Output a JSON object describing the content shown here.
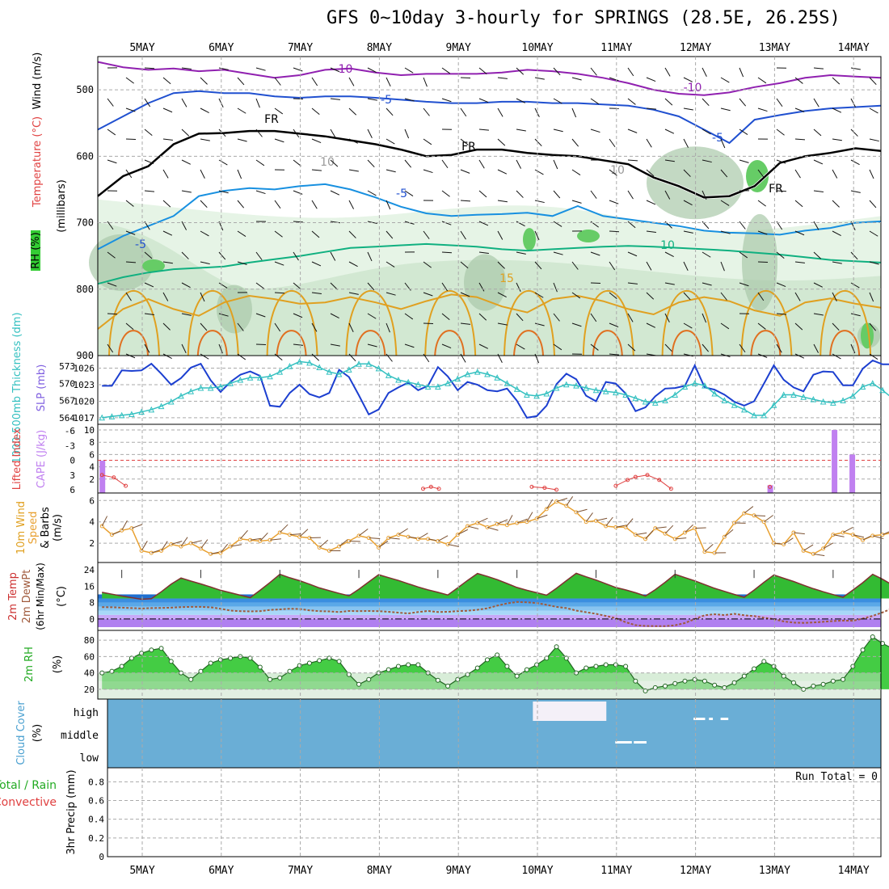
{
  "title": "GFS 0~10day 3-hourly for SPRINGS (28.5E, 26.25S)",
  "date_labels": [
    "5MAY",
    "6MAY",
    "7MAY",
    "8MAY",
    "9MAY",
    "10MAY",
    "11MAY",
    "12MAY",
    "13MAY",
    "14MAY"
  ],
  "colors": {
    "grid": "#aaaaaa",
    "slp": "#1c3fd0",
    "thick": "#33c0c0",
    "cape": "#c080f0",
    "li": "#e04040",
    "wind": "#e8a030",
    "rh": "#22cc22",
    "cloud": "#6aaed6"
  },
  "chart_data": [
    {
      "id": "upper_air",
      "type": "heatmap",
      "ylabel": "(millibars)",
      "side_labels": [
        "Wind (m/s)",
        "Temperature (°C)",
        "RH (%)"
      ],
      "yticks": [
        500,
        600,
        700,
        800,
        900
      ],
      "ylim": [
        900,
        450
      ],
      "contour_labels": [
        "-10",
        "-10",
        "-5",
        "-5",
        "-5",
        "FR",
        "FR",
        "FR",
        "-5",
        "10",
        "15",
        "10",
        "10"
      ],
      "temp_contours": [
        {
          "name": "-10",
          "color": "#9020b0",
          "pressure": [
            458,
            466,
            470,
            468,
            472,
            470,
            476,
            482,
            478,
            470,
            468,
            474,
            478,
            476,
            476,
            476,
            474,
            470,
            472,
            476,
            482,
            490,
            500,
            506,
            508,
            504,
            496,
            490,
            482,
            478,
            480,
            482
          ]
        },
        {
          "name": "-5",
          "color": "#2050d0",
          "pressure": [
            560,
            540,
            520,
            505,
            502,
            505,
            505,
            510,
            512,
            510,
            510,
            512,
            515,
            518,
            520,
            520,
            518,
            518,
            520,
            520,
            522,
            524,
            530,
            540,
            560,
            580,
            545,
            538,
            532,
            528,
            526,
            524
          ]
        },
        {
          "name": "FR",
          "color": "#000000",
          "pressure": [
            660,
            630,
            615,
            582,
            566,
            565,
            562,
            562,
            566,
            570,
            576,
            582,
            590,
            600,
            598,
            590,
            590,
            595,
            598,
            600,
            606,
            612,
            632,
            645,
            662,
            660,
            645,
            610,
            600,
            595,
            588,
            592
          ]
        },
        {
          "name": "-5 (lower)",
          "color": "#1890e0",
          "pressure": [
            740,
            720,
            705,
            690,
            660,
            652,
            648,
            650,
            645,
            642,
            650,
            662,
            676,
            686,
            690,
            688,
            687,
            685,
            690,
            675,
            690,
            695,
            700,
            705,
            712,
            715,
            716,
            718,
            712,
            708,
            700,
            698
          ]
        },
        {
          "name": "10",
          "color": "#10b080",
          "pressure": [
            792,
            782,
            775,
            770,
            768,
            766,
            760,
            755,
            750,
            744,
            738,
            736,
            734,
            732,
            734,
            736,
            740,
            742,
            740,
            738,
            736,
            735,
            736,
            738,
            740,
            742,
            745,
            748,
            752,
            756,
            758,
            760
          ]
        },
        {
          "name": "15",
          "color": "#e0a020",
          "pressure": [
            860,
            830,
            815,
            830,
            840,
            820,
            810,
            815,
            822,
            820,
            812,
            820,
            830,
            818,
            808,
            812,
            826,
            835,
            815,
            810,
            818,
            830,
            838,
            820,
            812,
            818,
            832,
            840,
            820,
            814,
            822,
            828
          ]
        }
      ]
    },
    {
      "id": "slp_thickness",
      "type": "line",
      "left_label": "1000-500mb Thickness (dm)",
      "right_label": "SLP (mb)",
      "thickness_ticks": [
        564,
        567,
        570,
        573
      ],
      "slp_ticks": [
        1017,
        1020,
        1023,
        1026
      ],
      "series": [
        {
          "name": "SLP (mb)",
          "color": "#1c3fd0",
          "values": [
            1022.8,
            1022.8,
            1025.6,
            1025.5,
            1025.6,
            1026.8,
            1025.0,
            1023.0,
            1024.2,
            1026.1,
            1026.8,
            1023.8,
            1021.7,
            1023.5,
            1024.8,
            1025.4,
            1024.6,
            1019.2,
            1019.0,
            1021.5,
            1023.0,
            1021.3,
            1020.7,
            1021.5,
            1025.7,
            1024.4,
            1021.1,
            1017.6,
            1018.5,
            1021.5,
            1022.5,
            1023.4,
            1022.0,
            1022.8,
            1026.2,
            1024.5,
            1022.0,
            1023.5,
            1023.0,
            1022.0,
            1021.8,
            1022.3,
            1020.1,
            1017.0,
            1017.3,
            1019.2,
            1023.1,
            1025.0,
            1024.0,
            1021.0,
            1020.0,
            1023.5,
            1023.2,
            1021.4,
            1018.2,
            1018.9,
            1020.9,
            1022.3,
            1022.4,
            1022.8,
            1026.5,
            1022.5,
            1022.1,
            1021.2,
            1019.9,
            1019.2,
            1020.0,
            1023.2,
            1026.5,
            1023.9,
            1022.5,
            1021.8,
            1024.8,
            1025.4,
            1025.3,
            1022.9,
            1022.9,
            1025.9,
            1027.4,
            1026.7,
            1026.7,
            1026.9
          ]
        },
        {
          "name": "1000-500mb Thickness (dm)",
          "color": "#33c0c0",
          "values": [
            564.0,
            564.2,
            564.4,
            564.6,
            565.0,
            565.4,
            566.0,
            566.8,
            567.8,
            568.6,
            569.2,
            569.2,
            569.4,
            570.0,
            570.6,
            571.0,
            571.0,
            571.2,
            572.0,
            573.0,
            573.8,
            573.6,
            572.8,
            572.0,
            571.6,
            572.4,
            573.4,
            573.4,
            572.6,
            571.4,
            570.6,
            570.2,
            569.8,
            569.4,
            569.4,
            570.0,
            570.8,
            571.6,
            572.0,
            571.6,
            571.0,
            570.0,
            569.0,
            568.0,
            567.8,
            568.2,
            569.2,
            569.8,
            569.6,
            569.2,
            568.8,
            568.6,
            568.4,
            568.0,
            567.4,
            566.8,
            566.6,
            567.0,
            568.0,
            569.4,
            570.0,
            569.6,
            568.2,
            567.0,
            566.2,
            565.4,
            564.4,
            564.4,
            566.2,
            568.0,
            568.0,
            567.6,
            567.2,
            566.8,
            566.6,
            567.0,
            567.8,
            569.4,
            570.0,
            568.8,
            567.4,
            567.0
          ]
        }
      ]
    },
    {
      "id": "cape_li",
      "type": "bar",
      "left_label": "Lifted Index",
      "right_label": "CAPE (J/kg)",
      "li_ticks": [
        "-6",
        "-3",
        "0",
        "3",
        "6"
      ],
      "cape_ticks": [
        2,
        4,
        6,
        8,
        10
      ],
      "cape_bars": [
        {
          "x": 0.0,
          "value": 5
        },
        {
          "x": 67.6,
          "value": 1
        },
        {
          "x": 74.1,
          "value": 10
        },
        {
          "x": 75.9,
          "value": 6
        }
      ],
      "li_points": [
        {
          "x": 0.0,
          "value": 3.0
        },
        {
          "x": 1.2,
          "value": 3.5
        },
        {
          "x": 2.4,
          "value": 5.2
        },
        {
          "x": 32.5,
          "value": 5.8
        },
        {
          "x": 33.3,
          "value": 5.4
        },
        {
          "x": 34.1,
          "value": 5.8
        },
        {
          "x": 43.5,
          "value": 5.4
        },
        {
          "x": 44.8,
          "value": 5.6
        },
        {
          "x": 46.0,
          "value": 6.0
        },
        {
          "x": 52.0,
          "value": 5.2
        },
        {
          "x": 53.2,
          "value": 4.0
        },
        {
          "x": 54.0,
          "value": 3.4
        },
        {
          "x": 55.2,
          "value": 3.0
        },
        {
          "x": 56.4,
          "value": 4.0
        },
        {
          "x": 57.6,
          "value": 5.8
        },
        {
          "x": 67.6,
          "value": 5.4
        }
      ]
    },
    {
      "id": "wind10m",
      "type": "line",
      "left_label": "10m Wind Speed & Barbs (m/s)",
      "yticks": [
        2,
        4,
        6
      ],
      "ylim": [
        0.5,
        6.4
      ],
      "series": [
        {
          "name": "10m Wind Speed",
          "color": "#e8a030",
          "values": [
            3.6,
            2.8,
            3.2,
            3.4,
            1.3,
            1.1,
            1.3,
            1.9,
            1.7,
            2.0,
            1.5,
            1.0,
            1.1,
            1.7,
            2.4,
            2.3,
            2.2,
            2.3,
            3.0,
            2.8,
            2.6,
            2.5,
            1.6,
            1.3,
            1.7,
            2.2,
            2.7,
            2.5,
            1.6,
            2.5,
            2.8,
            2.6,
            2.4,
            2.4,
            2.2,
            1.9,
            2.8,
            3.6,
            3.9,
            3.5,
            3.8,
            3.7,
            3.9,
            4.0,
            4.3,
            5.2,
            5.9,
            5.5,
            4.9,
            4.0,
            4.1,
            3.6,
            3.5,
            3.5,
            2.8,
            2.4,
            3.4,
            2.9,
            2.4,
            3.0,
            3.4,
            1.2,
            1.1,
            2.6,
            3.9,
            4.8,
            4.6,
            4.0,
            2.0,
            1.9,
            3.0,
            1.3,
            1.0,
            1.5,
            2.8,
            3.0,
            2.8,
            2.3,
            2.7,
            2.8,
            3.0,
            2.6
          ]
        }
      ]
    },
    {
      "id": "temp2m",
      "type": "area",
      "left_label": "2m Temp 2m DewPt (6hr Min/Max) (°C)",
      "yticks": [
        0,
        8,
        16,
        24
      ],
      "ylim": [
        -4.0,
        26.0
      ],
      "series": [
        {
          "name": "2m Temp",
          "color": "#22aa22",
          "values": [
            13.0,
            12.1,
            11.2,
            10.4,
            9.6,
            9.9,
            13.3,
            17.0,
            20.0,
            18.5,
            17.1,
            15.6,
            14.0,
            12.8,
            11.6,
            10.4,
            14.0,
            17.8,
            21.8,
            20.1,
            18.7,
            17.0,
            15.2,
            13.8,
            12.5,
            11.3,
            14.5,
            18.1,
            21.6,
            20.2,
            18.8,
            17.2,
            15.6,
            14.2,
            13.0,
            11.7,
            15.2,
            18.8,
            22.2,
            20.8,
            19.2,
            17.3,
            15.4,
            14.0,
            12.8,
            11.6,
            15.0,
            18.7,
            22.3,
            20.6,
            19.0,
            17.2,
            15.4,
            14.2,
            12.8,
            11.2,
            14.3,
            17.9,
            21.8,
            20.2,
            18.6,
            16.8,
            15.0,
            13.5,
            12.0,
            10.6,
            14.1,
            17.9,
            21.5,
            19.9,
            18.3,
            16.5,
            14.8,
            13.3,
            11.9,
            10.6,
            14.1,
            17.7,
            21.8,
            19.4,
            16.6,
            14.2
          ]
        },
        {
          "name": "2m DewPt",
          "color": "#a05a3c",
          "values": [
            5.8,
            5.7,
            5.5,
            5.3,
            5.1,
            5.3,
            5.4,
            5.5,
            5.8,
            5.9,
            5.9,
            5.7,
            5.0,
            4.1,
            3.8,
            3.7,
            3.8,
            4.4,
            4.7,
            5.0,
            4.9,
            4.2,
            3.8,
            3.7,
            3.4,
            3.9,
            3.8,
            3.9,
            3.8,
            3.5,
            3.1,
            2.7,
            3.4,
            3.9,
            3.4,
            3.5,
            3.8,
            4.0,
            4.5,
            5.2,
            6.5,
            7.6,
            8.3,
            8.1,
            7.8,
            6.9,
            5.9,
            5.3,
            4.1,
            3.3,
            2.5,
            1.5,
            0.4,
            -1.6,
            -3.0,
            -3.4,
            -3.5,
            -3.5,
            -3.1,
            -2.0,
            0.0,
            1.8,
            2.3,
            1.9,
            2.5,
            1.8,
            1.4,
            0.6,
            -0.1,
            -1.2,
            -1.8,
            -1.9,
            -1.7,
            -1.4,
            -1.0,
            -0.8,
            -0.9,
            0.2,
            1.5,
            3.2,
            5.2,
            6.0
          ]
        }
      ]
    },
    {
      "id": "rh2m",
      "type": "area",
      "left_label": "2m RH (%)",
      "yticks": [
        20,
        40,
        60,
        80
      ],
      "ylim": [
        10,
        88
      ],
      "series": [
        {
          "name": "2m RH",
          "color": "#22cc22",
          "values": [
            40.0,
            42.0,
            48.0,
            58.0,
            64.0,
            68.0,
            70.0,
            54.0,
            40.0,
            32.0,
            42.0,
            52.0,
            56.0,
            58.0,
            60.0,
            58.0,
            47.0,
            32.0,
            34.0,
            42.0,
            49.0,
            52.0,
            55.0,
            58.0,
            54.0,
            38.0,
            26.0,
            32.0,
            40.0,
            44.0,
            48.0,
            50.0,
            50.0,
            40.0,
            31.0,
            24.0,
            32.0,
            38.0,
            46.0,
            56.0,
            62.0,
            48.0,
            36.0,
            44.0,
            50.0,
            58.0,
            72.0,
            58.0,
            40.0,
            46.0,
            48.0,
            50.0,
            50.0,
            48.0,
            30.0,
            18.0,
            22.0,
            24.0,
            27.0,
            30.0,
            32.0,
            30.0,
            25.0,
            22.0,
            28.0,
            36.0,
            45.0,
            54.0,
            48.0,
            36.0,
            28.0,
            20.0,
            24.0,
            26.0,
            30.0,
            32.0,
            48.0,
            68.0,
            84.0,
            76.0,
            70.0,
            66.0
          ]
        }
      ]
    },
    {
      "id": "cloud_cover",
      "type": "heatmap",
      "left_label": "Cloud Cover (%)",
      "levels": [
        "high",
        "middle",
        "low"
      ],
      "high_clear": [
        [
          55.0,
          64.5
        ]
      ],
      "middle_clear": [
        [
          69.5,
          71.0
        ],
        [
          71.5,
          72.0
        ],
        [
          73.0,
          74.0
        ]
      ],
      "low_clear": [
        [
          55.2,
          56.3
        ],
        [
          57.6,
          58.2
        ]
      ]
    },
    {
      "id": "precip",
      "type": "bar",
      "left_label": "3hr Precip (mm)",
      "legend": "Total / Rain",
      "legend_2": "Convective",
      "yticks": [
        "0",
        "0.2",
        "0.4",
        "0.6",
        "0.8"
      ],
      "ylim": [
        0,
        0.95
      ],
      "run_total": "Run Total = 0",
      "values": []
    }
  ]
}
